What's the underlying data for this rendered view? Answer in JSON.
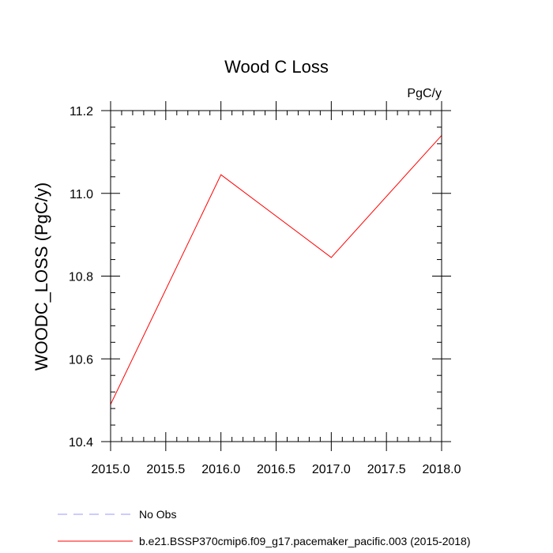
{
  "chart_data": {
    "type": "line",
    "title": "Wood C Loss",
    "units_label": "PgC/y",
    "ylabel": "WOODC_LOSS  (PgC/y)",
    "xlabel": "",
    "xlim": [
      2015.0,
      2018.0
    ],
    "ylim": [
      10.4,
      11.2
    ],
    "x_ticks": [
      2015.0,
      2015.5,
      2016.0,
      2016.5,
      2017.0,
      2017.5,
      2018.0
    ],
    "x_tick_labels": [
      "2015.0",
      "2015.5",
      "2016.0",
      "2016.5",
      "2017.0",
      "2017.5",
      "2018.0"
    ],
    "y_ticks": [
      10.4,
      10.6,
      10.8,
      11.0,
      11.2
    ],
    "y_tick_labels": [
      "10.4",
      "10.6",
      "10.8",
      "11.0",
      "11.2"
    ],
    "x_minor_step": 0.1,
    "y_minor_step": 0.04,
    "grid": false,
    "legend_placement": "bottom-left, below plot",
    "series": [
      {
        "name": "b.e21.BSSP370cmip6.f09_g17.pacemaker_pacific.003 (2015-2018)",
        "color": "#ff0000",
        "dash": "solid",
        "x": [
          2015.0,
          2016.0,
          2017.0,
          2018.0
        ],
        "y": [
          10.49,
          11.045,
          10.845,
          11.14
        ]
      }
    ],
    "legend": [
      {
        "label": "No Obs",
        "color": "#9999ff",
        "dash": "dashed"
      },
      {
        "label": "b.e21.BSSP370cmip6.f09_g17.pacemaker_pacific.003 (2015-2018)",
        "color": "#ff0000",
        "dash": "solid"
      }
    ]
  }
}
